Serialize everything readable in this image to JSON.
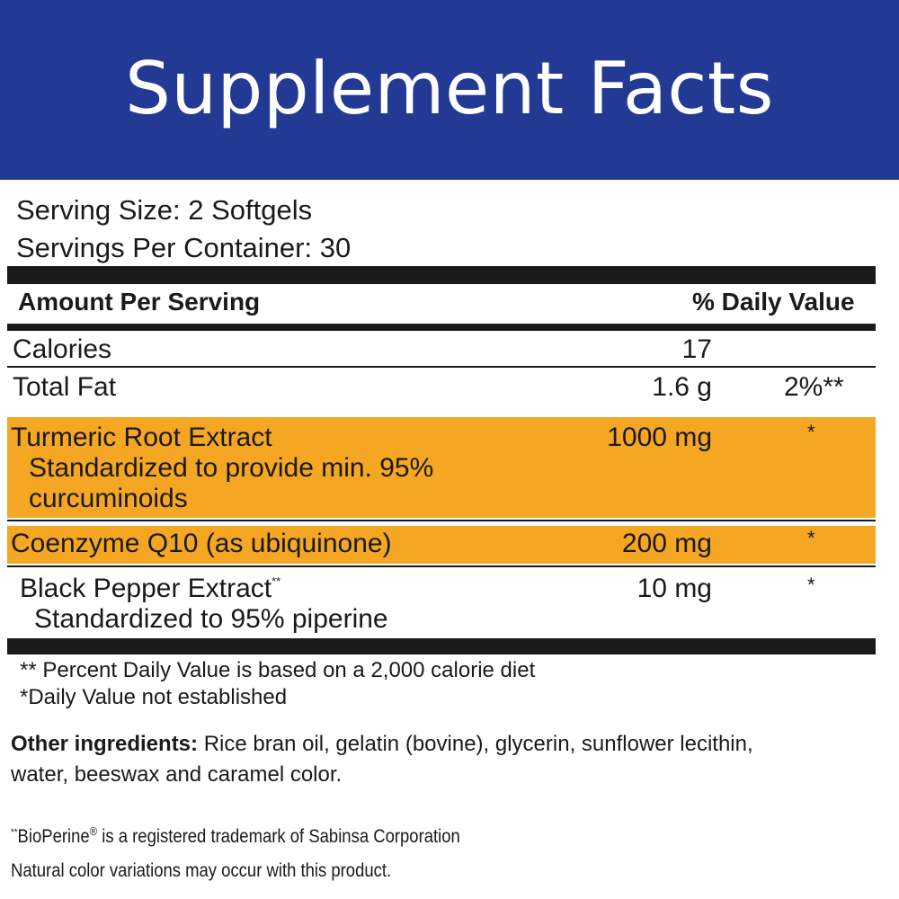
{
  "header": {
    "title": "Supplement Facts"
  },
  "serving": {
    "size": "Serving Size: 2 Softgels",
    "per_container": "Servings Per Container: 30"
  },
  "table": {
    "header_amount": "Amount Per Serving",
    "header_dv": "% Daily Value",
    "rows": [
      {
        "name": "Calories",
        "amount": "17",
        "dv": ""
      },
      {
        "name": "Total Fat",
        "amount": "1.6 g",
        "dv": "2%**"
      },
      {
        "name": "Turmeric Root Extract",
        "sub1": "Standardized to provide min. 95%",
        "sub2": "curcuminoids",
        "amount": "1000 mg",
        "dv": "*",
        "highlight": "#f5a623"
      },
      {
        "name": "Coenzyme Q10 (as ubiquinone)",
        "amount": "200 mg",
        "dv": "*",
        "highlight": "#f5a623"
      },
      {
        "name": "Black Pepper Extract",
        "name_sup": "**",
        "sub1": "Standardized to 95% piperine",
        "amount": "10 mg",
        "dv": "*"
      }
    ]
  },
  "footnotes": {
    "line1": "** Percent Daily Value is based on a 2,000 calorie diet",
    "line2": "*Daily Value not established"
  },
  "other_ingredients": {
    "label": "Other ingredients:",
    "text1": " Rice bran oil, gelatin (bovine), glycerin, sunflower lecithin,",
    "text2": "water, beeswax and caramel color."
  },
  "trademark": {
    "prefix": "**",
    "brand": "BioPerine",
    "reg": "®",
    "rest": " is a registered trademark of Sabinsa Corporation"
  },
  "note": "Natural color variations may occur with this product.",
  "colors": {
    "header_bg": "#233a94",
    "highlight": "#f5a623",
    "rule": "#1a1a1a"
  }
}
